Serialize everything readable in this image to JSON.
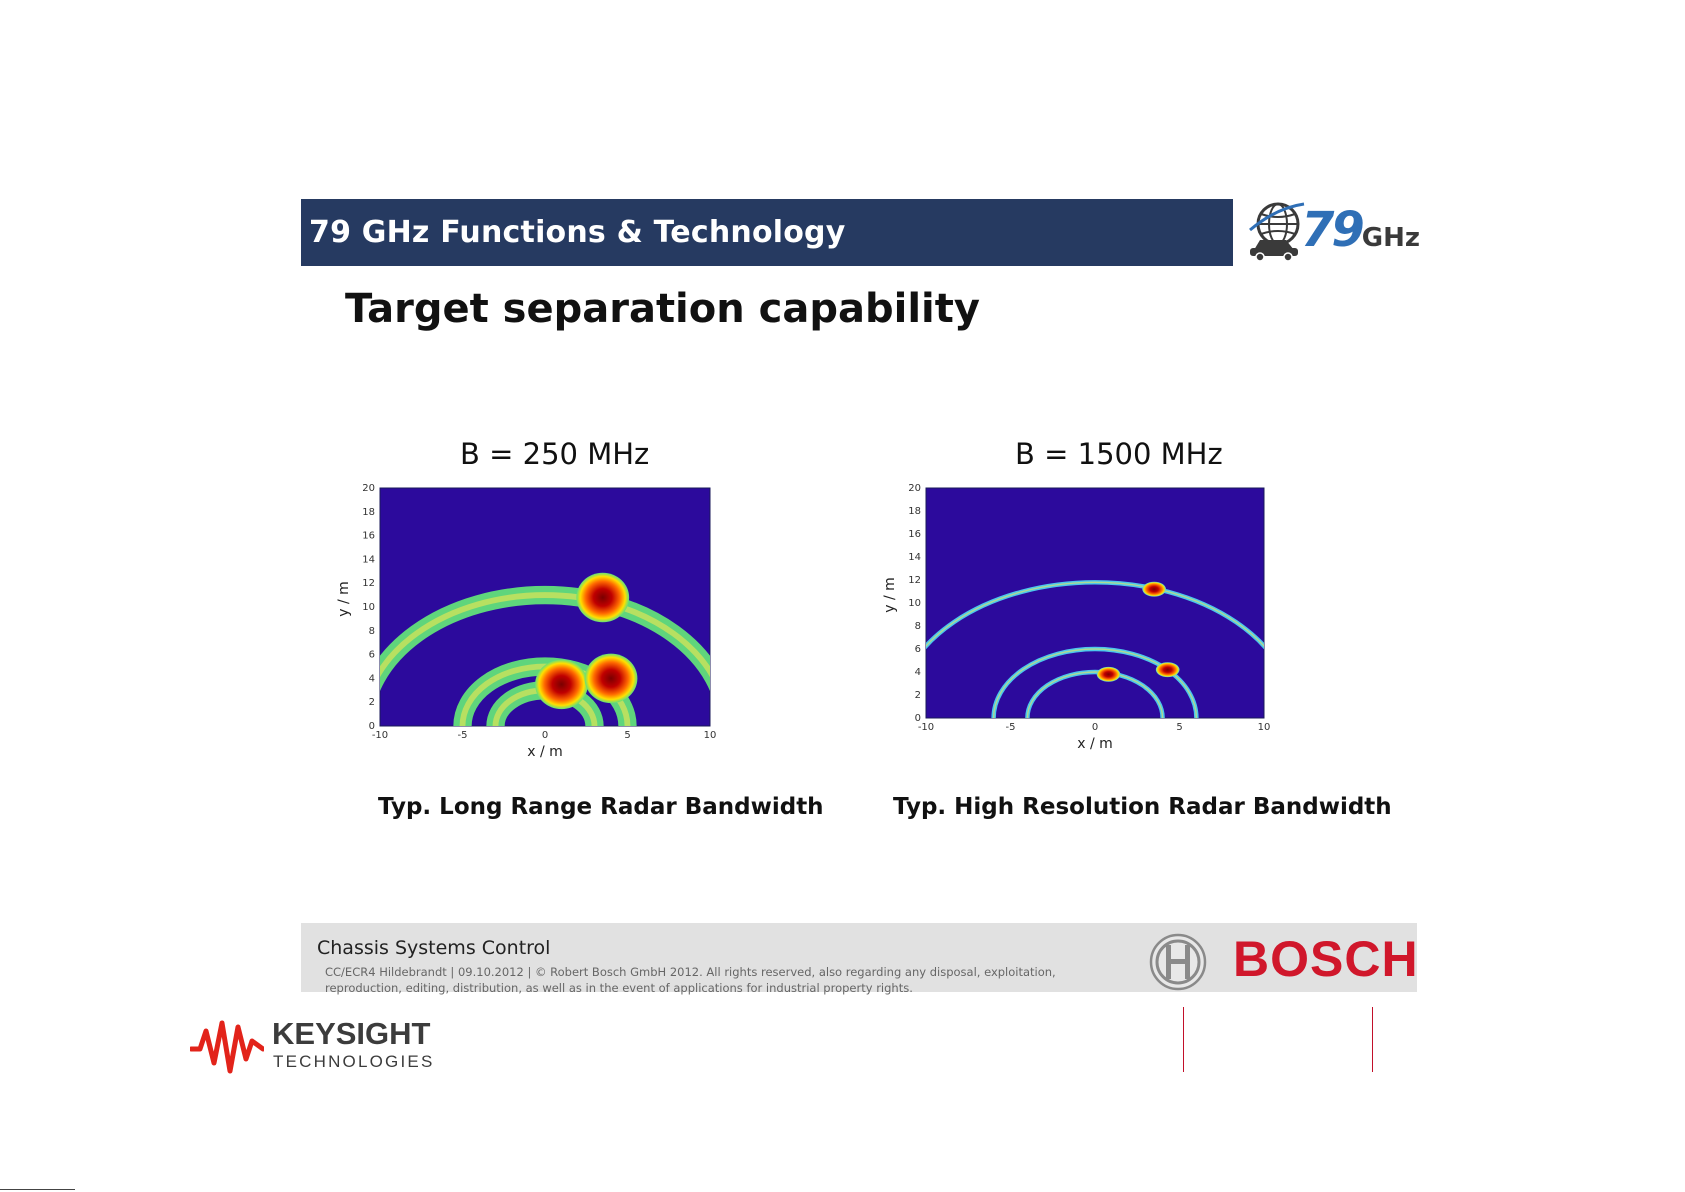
{
  "header": {
    "title": "79 GHz Functions & Technology",
    "logo_number": "79",
    "logo_unit": "GHz"
  },
  "slide": {
    "heading": "Target separation capability"
  },
  "plots": {
    "left": {
      "bandwidth_label": "B = 250 MHz",
      "caption": "Typ. Long Range Radar Bandwidth"
    },
    "right": {
      "bandwidth_label": "B = 1500 MHz",
      "caption": "Typ. High Resolution Radar Bandwidth"
    }
  },
  "chart_data": [
    {
      "type": "heatmap",
      "title": "B = 250 MHz",
      "xlabel": "x / m",
      "ylabel": "y / m",
      "xlim": [
        -10,
        10
      ],
      "ylim": [
        0,
        20
      ],
      "x_ticks": [
        -10,
        -5,
        0,
        5,
        10
      ],
      "y_ticks": [
        0,
        2,
        4,
        6,
        8,
        10,
        12,
        14,
        16,
        18,
        20
      ],
      "targets": [
        {
          "x": 3.5,
          "y": 10.8
        },
        {
          "x": 1.0,
          "y": 3.5
        },
        {
          "x": 4.0,
          "y": 4.0
        }
      ],
      "range_rings": [
        11.0,
        5.0,
        3.0
      ],
      "ring_width": 1.4,
      "colors": {
        "background": "#2c0a9c",
        "ring": "#62e07a",
        "hot": "#c00000"
      }
    },
    {
      "type": "heatmap",
      "title": "B = 1500 MHz",
      "xlabel": "x / m",
      "ylabel": "y / m",
      "xlim": [
        -10,
        10
      ],
      "ylim": [
        0,
        20
      ],
      "x_ticks": [
        -10,
        -5,
        0,
        5,
        10
      ],
      "y_ticks": [
        0,
        2,
        4,
        6,
        8,
        10,
        12,
        14,
        16,
        18,
        20
      ],
      "targets": [
        {
          "x": 3.5,
          "y": 11.2
        },
        {
          "x": 4.3,
          "y": 4.2
        },
        {
          "x": 0.8,
          "y": 3.8
        }
      ],
      "range_rings": [
        11.8,
        6.0,
        4.0
      ],
      "ring_width": 0.35,
      "colors": {
        "background": "#2c0a9c",
        "ring": "#4fd2f0",
        "hot": "#c00000"
      }
    }
  ],
  "footer": {
    "title": "Chassis Systems Control",
    "legal": "CC/ECR4 Hildebrandt | 09.10.2012 | © Robert Bosch GmbH 2012. All rights reserved, also regarding any disposal, exploitation, reproduction, editing, distribution, as well as in the event of applications for industrial property rights.",
    "brand": "BOSCH"
  },
  "keysight": {
    "name": "KEYSIGHT",
    "sub": "TECHNOLOGIES"
  }
}
